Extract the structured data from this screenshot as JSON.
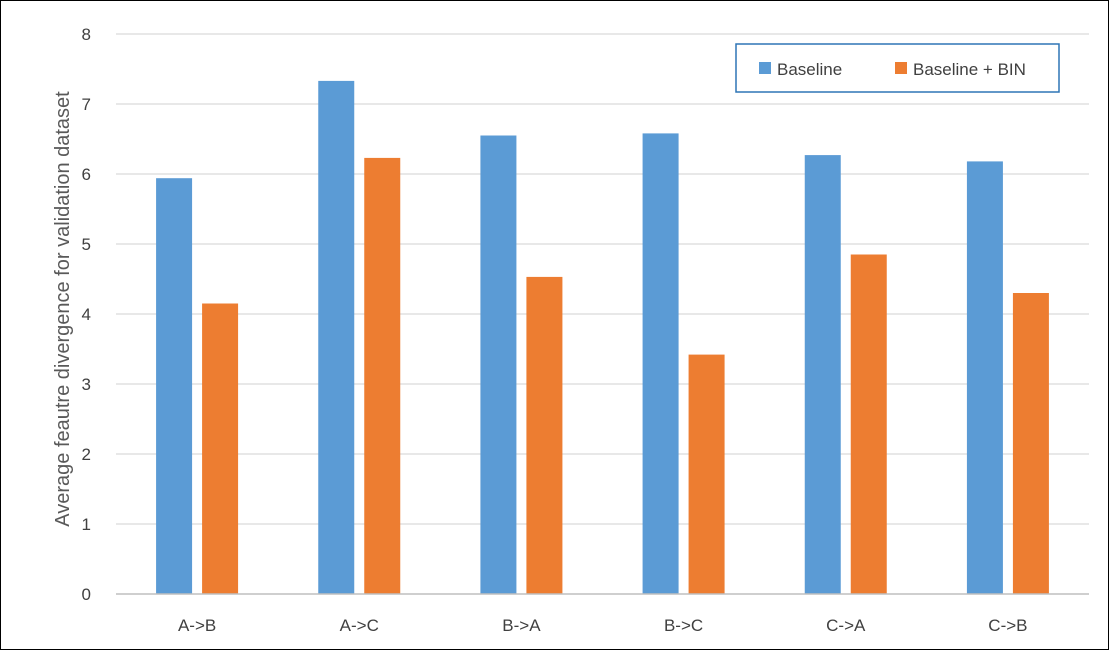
{
  "chart_data": {
    "type": "bar",
    "categories": [
      "A->B",
      "A->C",
      "B->A",
      "B->C",
      "C->A",
      "C->B"
    ],
    "series": [
      {
        "name": "Baseline",
        "color": "#5b9bd5",
        "values": [
          5.94,
          7.33,
          6.55,
          6.58,
          6.27,
          6.18
        ]
      },
      {
        "name": "Baseline + BIN",
        "color": "#ed7d31",
        "values": [
          4.15,
          6.23,
          4.53,
          3.42,
          4.85,
          4.3
        ]
      }
    ],
    "title": "",
    "xlabel": "",
    "ylabel": "Average feautre divergence for validation dataset",
    "ylim": [
      0,
      8
    ],
    "yticks": [
      0,
      1,
      2,
      3,
      4,
      5,
      6,
      7,
      8
    ],
    "grid": true,
    "legend_position": "top-right",
    "colors": {
      "gridline": "#d9d9d9",
      "axis": "#bfbfbf",
      "legend_border": "#2e75b6",
      "frame": "#000000"
    }
  }
}
